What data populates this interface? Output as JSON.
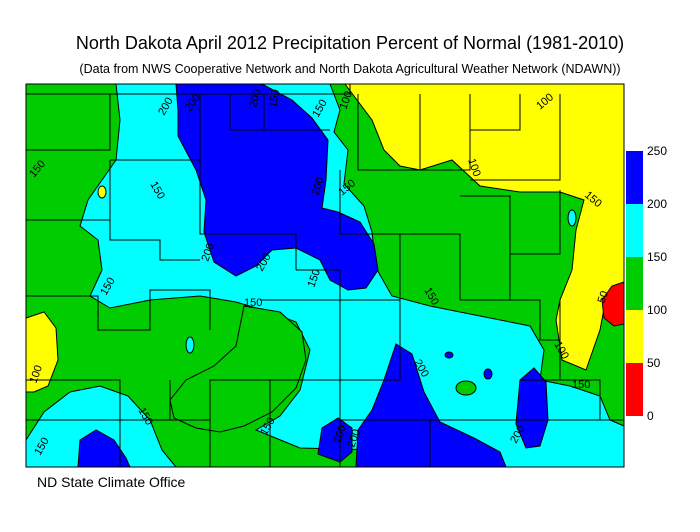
{
  "title": "North Dakota April 2012 Precipitation Percent of Normal (1981-2010)",
  "subtitle": "(Data from NWS Cooperative Network and North Dakota Agricultural Weather Network (NDAWN))",
  "credit": "ND State Climate Office",
  "legend": {
    "bins": [
      {
        "from": 200,
        "to": 250,
        "color": "#0000ff"
      },
      {
        "from": 150,
        "to": 200,
        "color": "#00ffff"
      },
      {
        "from": 100,
        "to": 150,
        "color": "#00cc00"
      },
      {
        "from": 50,
        "to": 100,
        "color": "#ffff00"
      },
      {
        "from": 0,
        "to": 50,
        "color": "#ff0000"
      }
    ],
    "ticks": [
      "250",
      "200",
      "150",
      "100",
      "50",
      "0"
    ]
  },
  "contour_labels": [
    "150",
    "150",
    "200",
    "200",
    "150",
    "100",
    "100",
    "100",
    "150",
    "200",
    "200",
    "150",
    "150",
    "150",
    "150",
    "150",
    "100",
    "200",
    "150",
    "150",
    "100",
    "150",
    "200",
    "150",
    "200",
    "200",
    "200",
    "200",
    "150",
    "50"
  ]
}
